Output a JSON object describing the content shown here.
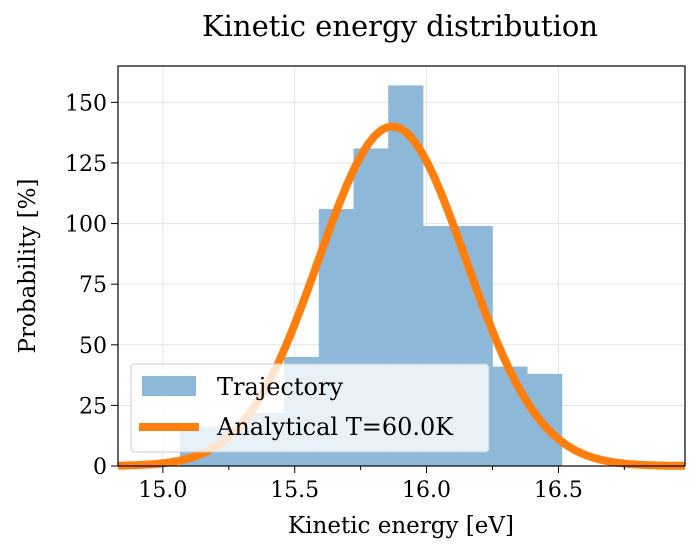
{
  "chart_data": {
    "type": "bar",
    "title": "Kinetic energy distribution",
    "xlabel": "Kinetic energy [eV]",
    "ylabel": "Probability [%]",
    "xlim": [
      14.83,
      16.98
    ],
    "ylim": [
      0,
      165
    ],
    "xticks": [
      "15.0",
      "15.5",
      "16.0",
      "16.5"
    ],
    "xtick_values": [
      15.0,
      15.5,
      16.0,
      16.5
    ],
    "yticks": [
      "0",
      "25",
      "50",
      "75",
      "100",
      "125",
      "150"
    ],
    "ytick_values": [
      0,
      25,
      50,
      75,
      100,
      125,
      150
    ],
    "grid": true,
    "legend_position": "lower-left",
    "series": [
      {
        "name": "Trajectory",
        "type": "histogram",
        "color": "#8db8d8",
        "bin_start": 15.065,
        "bin_width": 0.1316,
        "values": [
          16,
          16,
          22,
          45,
          106,
          131,
          157,
          99,
          99,
          41,
          38
        ]
      },
      {
        "name": "Analytical T=60.0K",
        "type": "line",
        "color": "#ff7f0e",
        "gaussian": {
          "mean": 15.87,
          "sigma": 0.28,
          "peak": 140
        }
      }
    ]
  }
}
